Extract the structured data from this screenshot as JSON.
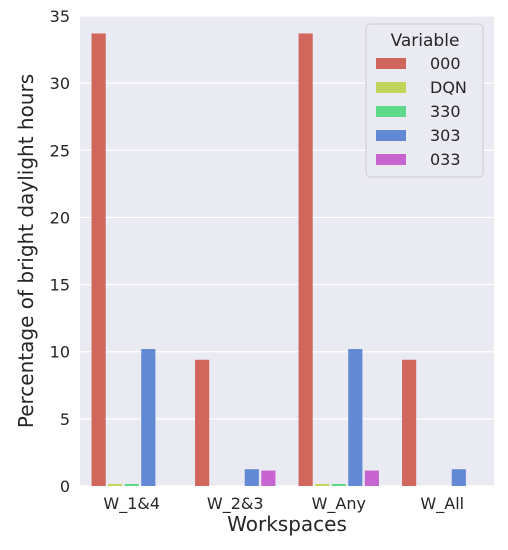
{
  "chart_data": {
    "type": "bar",
    "title": "",
    "xlabel": "Workspaces",
    "ylabel": "Percentage of bright daylight hours",
    "categories": [
      "W_1&4",
      "W_2&3",
      "W_Any",
      "W_All"
    ],
    "ylim": [
      0,
      35
    ],
    "yticks": [
      0,
      5,
      10,
      15,
      20,
      25,
      30,
      35
    ],
    "grid": true,
    "legend": {
      "title": "Variable",
      "position": "top-right"
    },
    "series": [
      {
        "name": "000",
        "color": "#d1665d",
        "values": [
          33.7,
          9.4,
          33.7,
          9.4
        ]
      },
      {
        "name": "DQN",
        "color": "#c0d55a",
        "values": [
          0.15,
          0,
          0.15,
          0
        ]
      },
      {
        "name": "330",
        "color": "#5fd98a",
        "values": [
          0.15,
          0,
          0.15,
          0
        ]
      },
      {
        "name": "303",
        "color": "#6389d4",
        "values": [
          10.2,
          1.25,
          10.2,
          1.25
        ]
      },
      {
        "name": "033",
        "color": "#c764cf",
        "values": [
          0,
          1.15,
          1.15,
          0
        ]
      }
    ]
  }
}
